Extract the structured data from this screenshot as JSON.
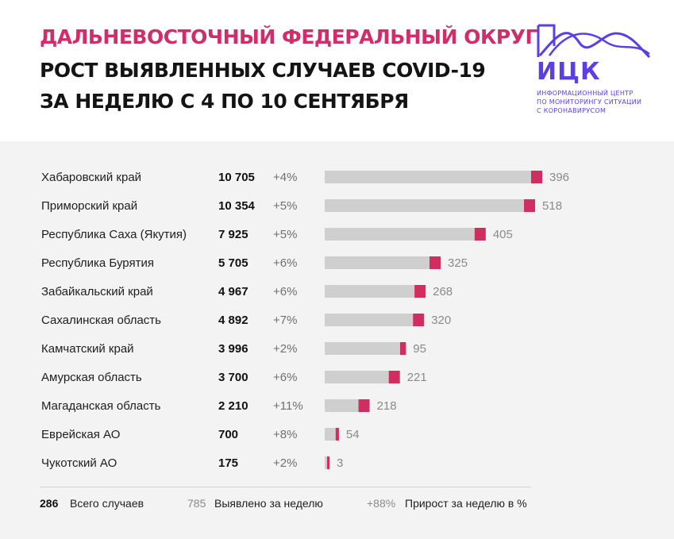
{
  "header": {
    "title_line1": "ДАЛЬНЕВОСТОЧНЫЙ ФЕДЕРАЛЬНЫЙ ОКРУГ",
    "title_line2": "РОСТ ВЫЯВЛЕННЫХ СЛУЧАЕВ COVID-19",
    "title_line3": "ЗА НЕДЕЛЮ С 4 ПО 10 СЕНТЯБРЯ"
  },
  "logo": {
    "word": "ИЦК",
    "sub_line1": "ИНФОРМАЦИОННЫЙ ЦЕНТР",
    "sub_line2": "ПО МОНИТОРИНГУ СИТУАЦИИ",
    "sub_line3": "С КОРОНАВИРУСОМ",
    "color": "#5b3ee6"
  },
  "colors": {
    "title_accent": "#d12d6b",
    "bar_total": "#cfcfcf",
    "bar_new": "#d12d5e",
    "panel_bg": "#f3f3f3"
  },
  "chart_data": {
    "type": "bar",
    "title": "Рост выявленных случаев COVID-19 за неделю с 4 по 10 сентября",
    "categories": [
      "Хабаровский край",
      "Приморский край",
      "Республика Саха (Якутия)",
      "Республика Бурятия",
      "Забайкальский край",
      "Сахалинская область",
      "Камчатский край",
      "Амурская область",
      "Магаданская область",
      "Еврейская АО",
      "Чукотский АО"
    ],
    "series": [
      {
        "name": "Всего случаев",
        "values": [
          10705,
          10354,
          7925,
          5705,
          4967,
          4892,
          3996,
          3700,
          2210,
          700,
          175
        ],
        "labels": [
          "10 705",
          "10 354",
          "7 925",
          "5 705",
          "4 967",
          "4 892",
          "3 996",
          "3 700",
          "2 210",
          "700",
          "175"
        ]
      },
      {
        "name": "Выявлено за неделю",
        "values": [
          396,
          518,
          405,
          325,
          268,
          320,
          95,
          221,
          218,
          54,
          3
        ]
      },
      {
        "name": "Прирост за неделю в %",
        "labels": [
          "+4%",
          "+5%",
          "+5%",
          "+6%",
          "+6%",
          "+7%",
          "+2%",
          "+6%",
          "+11%",
          "+8%",
          "+2%"
        ]
      }
    ],
    "xlim": [
      0,
      10705
    ],
    "orientation": "horizontal",
    "grid": false
  },
  "legend": {
    "total_value": "286",
    "total_label": "Всего случаев",
    "new_value": "785",
    "new_label": "Выявлено за неделю",
    "growth_value": "+88%",
    "growth_label": "Прирост за неделю в %"
  }
}
